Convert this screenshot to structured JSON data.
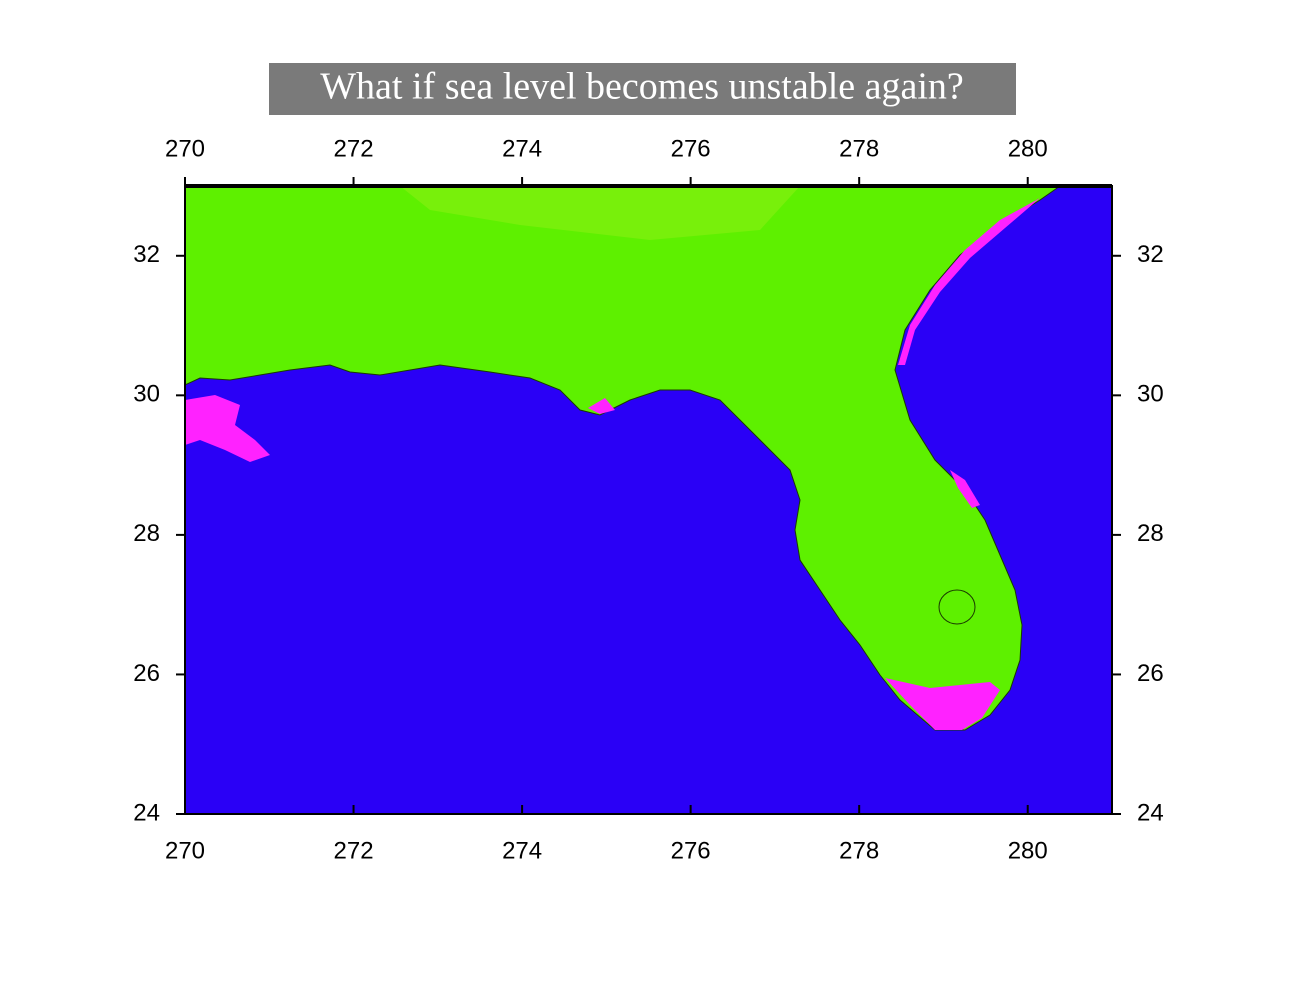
{
  "title": "What if sea level becomes unstable again?",
  "map": {
    "xlim": [
      270,
      281
    ],
    "ylim": [
      24,
      33
    ],
    "xticks": [
      270,
      272,
      274,
      276,
      278,
      280
    ],
    "yticks": [
      24,
      26,
      28,
      30,
      32
    ]
  }
}
